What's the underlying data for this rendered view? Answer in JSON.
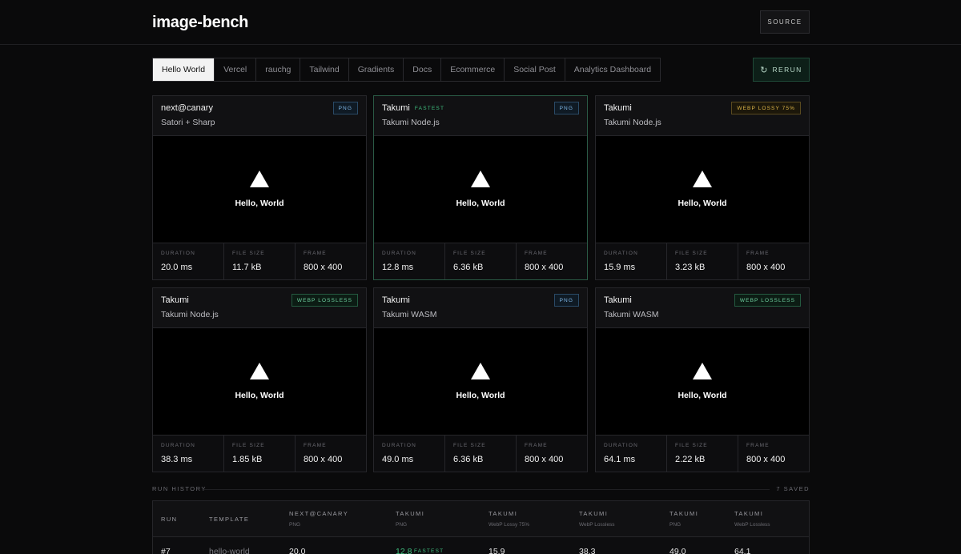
{
  "header": {
    "brand": "image-bench",
    "source_label": "SOURCE"
  },
  "tabs": [
    "Hello World",
    "Vercel",
    "rauchg",
    "Tailwind",
    "Gradients",
    "Docs",
    "Ecommerce",
    "Social Post",
    "Analytics Dashboard"
  ],
  "active_tab": "Hello World",
  "rerun_label": "RERUN",
  "stat_labels": {
    "duration": "DURATION",
    "file_size": "FILE SIZE",
    "frame": "FRAME"
  },
  "cards": [
    {
      "title": "next@canary",
      "subtitle": "Satori + Sharp",
      "badge": "PNG",
      "fastest": "",
      "preview": "Hello, World",
      "duration": "20.0 ms",
      "file_size": "11.7 kB",
      "frame": "800 x 400"
    },
    {
      "title": "Takumi",
      "subtitle": "Takumi Node.js",
      "badge": "PNG",
      "fastest": "FASTEST",
      "preview": "Hello, World",
      "duration": "12.8 ms",
      "file_size": "6.36 kB",
      "frame": "800 x 400"
    },
    {
      "title": "Takumi",
      "subtitle": "Takumi Node.js",
      "badge": "WEBP LOSSY 75%",
      "fastest": "",
      "preview": "Hello, World",
      "duration": "15.9 ms",
      "file_size": "3.23 kB",
      "frame": "800 x 400"
    },
    {
      "title": "Takumi",
      "subtitle": "Takumi Node.js",
      "badge": "WEBP LOSSLESS",
      "fastest": "",
      "preview": "Hello, World",
      "duration": "38.3 ms",
      "file_size": "1.85 kB",
      "frame": "800 x 400"
    },
    {
      "title": "Takumi",
      "subtitle": "Takumi WASM",
      "badge": "PNG",
      "fastest": "",
      "preview": "Hello, World",
      "duration": "49.0 ms",
      "file_size": "6.36 kB",
      "frame": "800 x 400"
    },
    {
      "title": "Takumi",
      "subtitle": "Takumi WASM",
      "badge": "WEBP LOSSLESS",
      "fastest": "",
      "preview": "Hello, World",
      "duration": "64.1 ms",
      "file_size": "2.22 kB",
      "frame": "800 x 400"
    }
  ],
  "history": {
    "title": "RUN HISTORY",
    "count": "7 SAVED",
    "headers": {
      "run": "RUN",
      "template": "TEMPLATE",
      "cols": [
        {
          "name": "NEXT@CANARY",
          "sub": "PNG"
        },
        {
          "name": "TAKUMI",
          "sub": "PNG"
        },
        {
          "name": "TAKUMI",
          "sub": "WebP Lossy 75%"
        },
        {
          "name": "TAKUMI",
          "sub": "WebP Lossless"
        },
        {
          "name": "TAKUMI",
          "sub": "PNG"
        },
        {
          "name": "TAKUMI",
          "sub": "WebP Lossless"
        }
      ]
    },
    "rows": [
      {
        "run": "#7",
        "template": "hello-world",
        "values": [
          "20.0",
          "12.8",
          "15.9",
          "38.3",
          "49.0",
          "64.1"
        ],
        "fastest_label": "FASTEST"
      }
    ]
  }
}
